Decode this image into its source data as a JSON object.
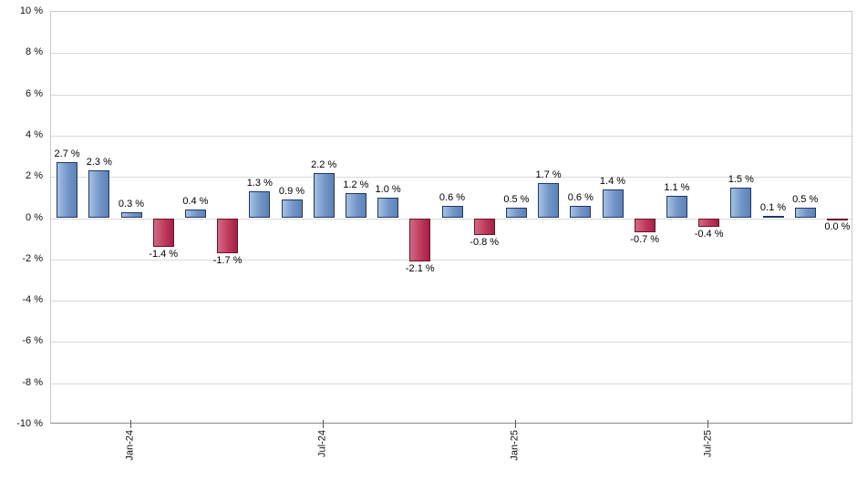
{
  "chart_data": {
    "type": "bar",
    "title": "",
    "grid": true,
    "legend": "none",
    "values": [
      2.7,
      2.3,
      0.3,
      -1.4,
      0.4,
      -1.7,
      1.3,
      0.9,
      2.2,
      1.2,
      1.0,
      -2.1,
      0.6,
      -0.8,
      0.5,
      1.7,
      0.6,
      1.4,
      -0.7,
      1.1,
      -0.4,
      1.5,
      0.1,
      0.5,
      0.0
    ],
    "labels": [
      "2.7 %",
      "2.3 %",
      "0.3 %",
      "-1.4 %",
      "0.4 %",
      "-1.7 %",
      "1.3 %",
      "0.9 %",
      "2.2 %",
      "1.2 %",
      "1.0 %",
      "-2.1 %",
      "0.6 %",
      "-0.8 %",
      "0.5 %",
      "1.7 %",
      "0.6 %",
      "1.4 %",
      "-0.7 %",
      "1.1 %",
      "-0.4 %",
      "1.5 %",
      "0.1 %",
      "0.5 %",
      "0.0 %"
    ],
    "x_tick_labels": [
      {
        "index": 2,
        "label": "Jan-24"
      },
      {
        "index": 8,
        "label": "Jul-24"
      },
      {
        "index": 14,
        "label": "Jan-25"
      },
      {
        "index": 20,
        "label": "Jul-25"
      }
    ],
    "y_axis": {
      "min": -10,
      "max": 10,
      "step": 2,
      "unit": "%",
      "tick_labels": [
        "10 %",
        "8 %",
        "6 %",
        "4 %",
        "2 %",
        "0 %",
        "-2 %",
        "-4 %",
        "-6 %",
        "-8 %",
        "-10 %"
      ]
    },
    "colors": {
      "positive": {
        "light": "#a6c1e1",
        "main": "#7195c8",
        "dark": "#5d82b8",
        "border": "#1f3864"
      },
      "negative": {
        "light": "#d06a85",
        "main": "#bf3a5c",
        "dark": "#a32047",
        "border": "#6b1228"
      },
      "gridline": "#d9d9d9",
      "plot_border": "#c8c8c8",
      "axis_line": "#8a8a8a",
      "tick_color": "#555555",
      "value_text": "#000000",
      "axis_text": "#111111"
    }
  }
}
